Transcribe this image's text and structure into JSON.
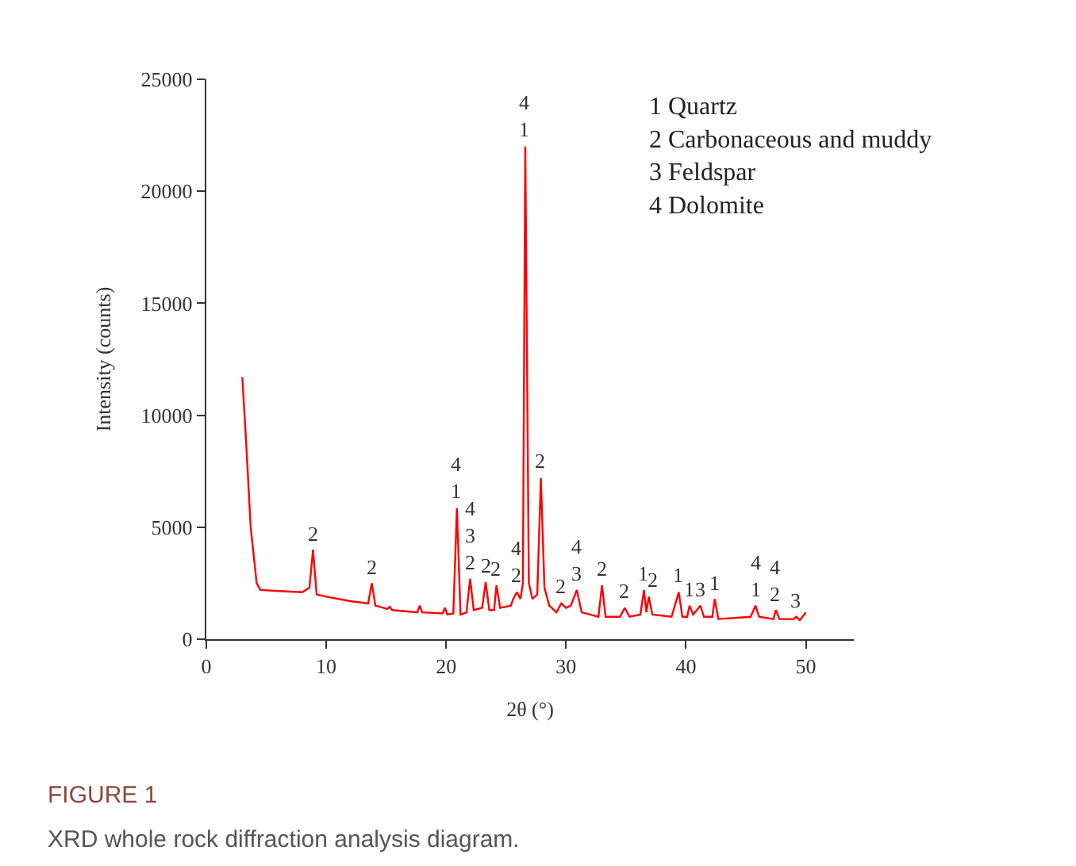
{
  "chart_data": {
    "type": "line",
    "xlabel": "2θ (°)",
    "ylabel": "Intensity (counts)",
    "xlim": [
      0,
      54
    ],
    "xticks": [
      0,
      10,
      20,
      30,
      40,
      50
    ],
    "ylim": [
      0,
      25000
    ],
    "yticks": [
      0,
      5000,
      10000,
      15000,
      20000,
      25000
    ],
    "marker": "none",
    "line_style": "solid",
    "series": [
      {
        "color": "#ff0000",
        "x": [
          3.0,
          3.3,
          3.7,
          4.2,
          4.5,
          6,
          8,
          8.6,
          8.9,
          9.2,
          10,
          12,
          13.5,
          13.8,
          14.1,
          15.1,
          15.3,
          15.5,
          17.6,
          17.8,
          18.0,
          19.7,
          19.9,
          20.1,
          20.6,
          20.9,
          21.2,
          21.7,
          22.0,
          22.3,
          23.0,
          23.3,
          23.6,
          24.0,
          24.2,
          24.5,
          25.4,
          25.6,
          25.9,
          26.2,
          26.4,
          26.6,
          26.9,
          27.2,
          27.6,
          27.9,
          28.2,
          28.6,
          29.2,
          29.6,
          30.0,
          30.4,
          30.9,
          31.3,
          32.7,
          33.0,
          33.3,
          34.5,
          34.9,
          35.3,
          36.2,
          36.5,
          36.7,
          36.9,
          37.2,
          38.8,
          39.4,
          39.7,
          40.1,
          40.3,
          40.6,
          41.2,
          41.5,
          42.2,
          42.4,
          42.7,
          45.4,
          45.8,
          46.1,
          47.3,
          47.5,
          47.8,
          49.0,
          49.2,
          49.5,
          50.0
        ],
        "values": [
          11700,
          9000,
          5000,
          2500,
          2200,
          2150,
          2100,
          2300,
          4000,
          2000,
          1900,
          1700,
          1600,
          2500,
          1500,
          1350,
          1450,
          1300,
          1200,
          1500,
          1200,
          1150,
          1400,
          1100,
          1150,
          5850,
          1100,
          1200,
          2700,
          1300,
          1400,
          2550,
          1300,
          1300,
          2400,
          1400,
          1500,
          1800,
          2100,
          1800,
          2500,
          22000,
          2500,
          1800,
          2000,
          7200,
          2300,
          1500,
          1200,
          1600,
          1400,
          1500,
          2200,
          1200,
          1000,
          2400,
          1000,
          1000,
          1400,
          1000,
          1100,
          2200,
          1200,
          1900,
          1100,
          1000,
          2100,
          1000,
          1000,
          1500,
          1100,
          1500,
          1000,
          1000,
          1800,
          900,
          1000,
          1500,
          1000,
          900,
          1300,
          900,
          900,
          1000,
          850,
          1200
        ]
      }
    ],
    "annotations": [
      {
        "text": "2",
        "x": 8.9,
        "y": 4000
      },
      {
        "text": "2",
        "x": 13.8,
        "y": 2500
      },
      {
        "text": "4\n1",
        "x": 20.9,
        "y": 5850
      },
      {
        "text": "4\n3\n2",
        "x": 22.0,
        "y": 2700
      },
      {
        "text": "2",
        "x": 23.3,
        "y": 2550
      },
      {
        "text": "2",
        "x": 24.2,
        "y": 2400
      },
      {
        "text": "4\n2",
        "x": 25.9,
        "y": 2100
      },
      {
        "text": "4\n1",
        "x": 26.6,
        "y": 22000
      },
      {
        "text": "2",
        "x": 27.9,
        "y": 7200
      },
      {
        "text": "2",
        "x": 29.6,
        "y": 1600
      },
      {
        "text": "4\n3",
        "x": 30.9,
        "y": 2200
      },
      {
        "text": "2",
        "x": 33.0,
        "y": 2400
      },
      {
        "text": "2",
        "x": 34.9,
        "y": 1400
      },
      {
        "text": "1",
        "x": 36.5,
        "y": 2200
      },
      {
        "text": "2",
        "x": 37.2,
        "y": 1900
      },
      {
        "text": "1",
        "x": 39.4,
        "y": 2100
      },
      {
        "text": "1",
        "x": 40.3,
        "y": 1500
      },
      {
        "text": "3",
        "x": 41.2,
        "y": 1500
      },
      {
        "text": "1",
        "x": 42.4,
        "y": 1800
      },
      {
        "text": "4\n1",
        "x": 45.8,
        "y": 1500
      },
      {
        "text": "4\n2",
        "x": 47.5,
        "y": 1300
      },
      {
        "text": "3",
        "x": 49.2,
        "y": 1000
      },
      "1 Quartz\n2 Carbonaceous and muddy\n3 Feldspar\n4 Dolomite",
      "FIGURE 1",
      "XRD whole rock diffraction analysis diagram."
    ]
  }
}
